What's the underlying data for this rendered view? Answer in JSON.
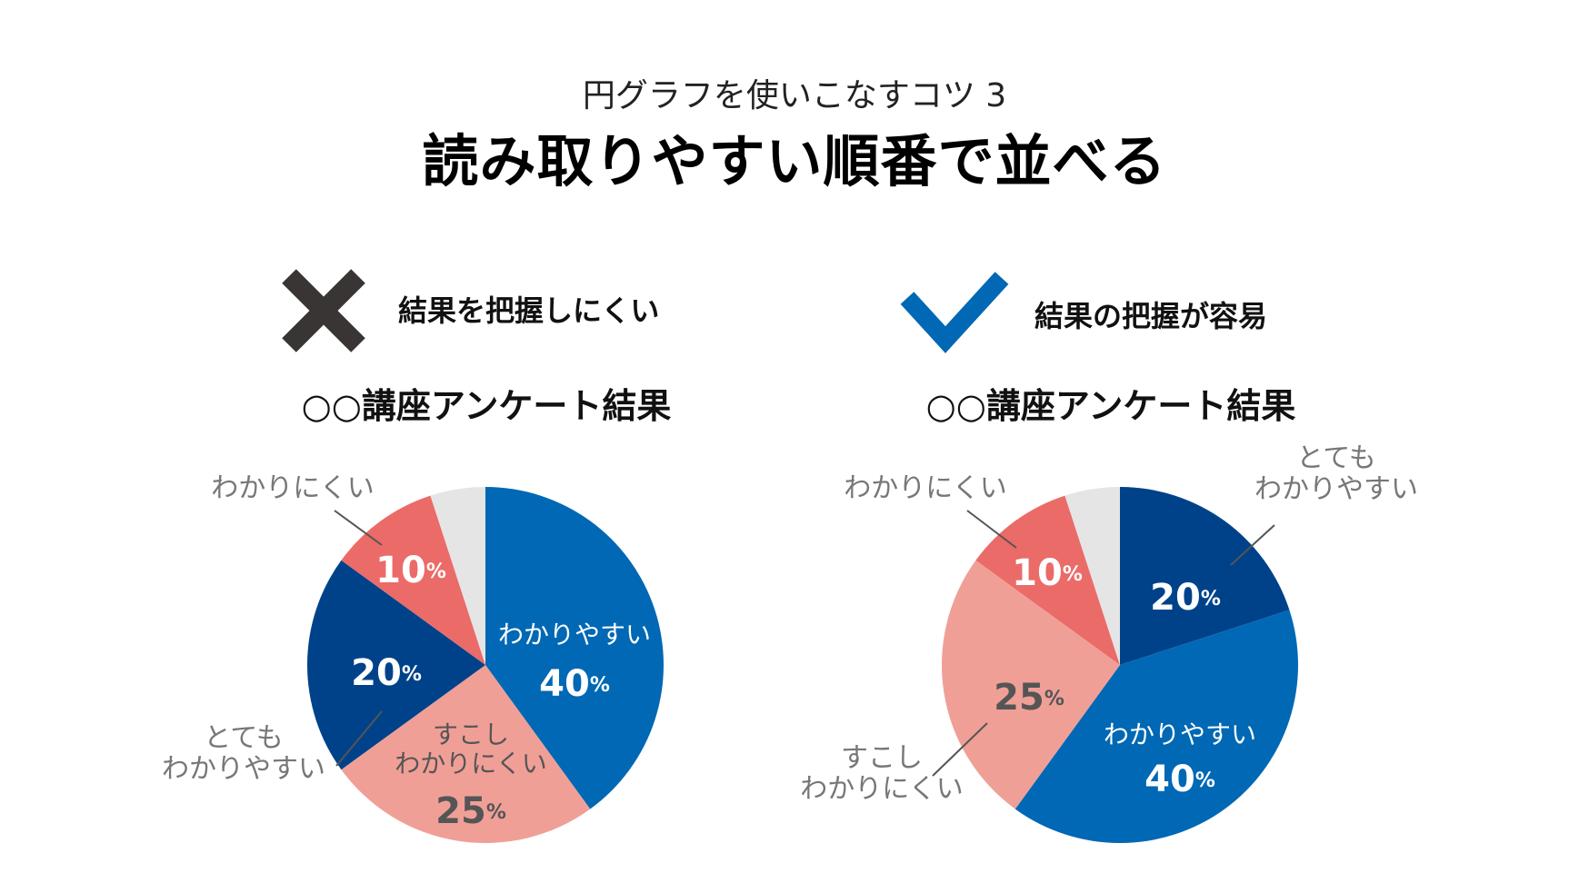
{
  "page": {
    "subtitle": "円グラフを使いこなすコツ 3",
    "title": "読み取りやすい順番で並べる"
  },
  "panels": [
    {
      "icon": "cross-icon",
      "label": "結果を把握しにくい",
      "chart_title": "○○講座アンケート結果"
    },
    {
      "icon": "checkmark-icon",
      "label": "結果の把握が容易",
      "chart_title": "○○講座アンケート結果"
    }
  ],
  "colors": {
    "icon_cross": "#3a3535",
    "icon_check": "#0068b4",
    "label_gray": "#777777",
    "value_dark": "#555555",
    "value_light": "#ffffff",
    "leader": "#555555"
  },
  "chart_data": [
    {
      "type": "pie",
      "title": "○○講座アンケート結果",
      "unit": "%",
      "slices": [
        {
          "category": "わかりやすい",
          "value": 40,
          "color": "#0068b4"
        },
        {
          "category": "すこし\nわかりにくい",
          "value": 25,
          "color": "#f09f97"
        },
        {
          "category": "とても\nわかりやすい",
          "value": 20,
          "color": "#00428a"
        },
        {
          "category": "わかりにくい",
          "value": 10,
          "color": "#eb6b68"
        },
        {
          "category": "",
          "value": 5,
          "color": "#e5e5e5"
        }
      ]
    },
    {
      "type": "pie",
      "title": "○○講座アンケート結果",
      "unit": "%",
      "slices": [
        {
          "category": "とても\nわかりやすい",
          "value": 20,
          "color": "#00428a"
        },
        {
          "category": "わかりやすい",
          "value": 40,
          "color": "#0068b4"
        },
        {
          "category": "すこし\nわかりにくい",
          "value": 25,
          "color": "#f09f97"
        },
        {
          "category": "わかりにくい",
          "value": 10,
          "color": "#eb6b68"
        },
        {
          "category": "",
          "value": 5,
          "color": "#e5e5e5"
        }
      ]
    }
  ]
}
